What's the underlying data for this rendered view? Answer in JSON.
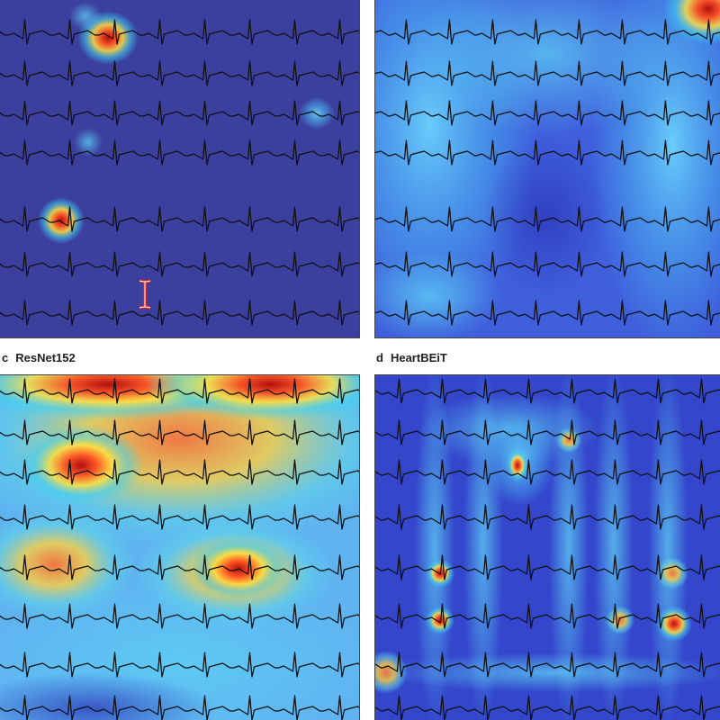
{
  "panels": [
    {
      "id": "a",
      "letter": "",
      "title": "",
      "background": "#3b3f9e"
    },
    {
      "id": "b",
      "letter": "",
      "title": "",
      "background": "#3f5fdc"
    },
    {
      "id": "c",
      "letter": "c",
      "title": "ResNet152",
      "background": "#5fb4f0"
    },
    {
      "id": "d",
      "letter": "d",
      "title": "HeartBEiT",
      "background": "#3447cc"
    }
  ],
  "ecg_trace_color": "#111111",
  "cursor_icon": "text-cursor-icon",
  "cursor_color": "#e0241c"
}
